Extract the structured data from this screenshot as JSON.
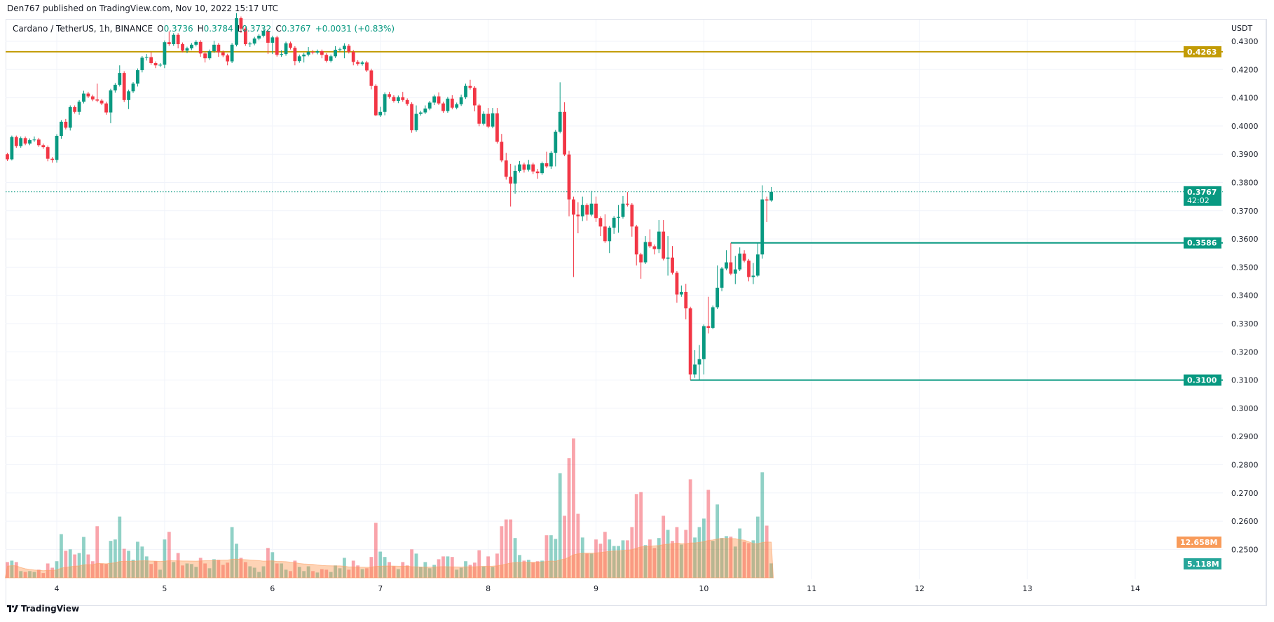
{
  "published": "Den767 published on TradingView.com, Nov 10, 2022 15:17 UTC",
  "legend": {
    "symbol": "Cardano / TetherUS, 1h, BINANCE",
    "o_label": "O",
    "o": "0.3736",
    "h_label": "H",
    "h": "0.3784",
    "l_label": "L",
    "l": "0.3732",
    "c_label": "C",
    "c": "0.3767",
    "change": "+0.0031 (+0.83%)"
  },
  "footer": {
    "logo_text": "TradingView",
    "logo_icon": "tradingview-logo-icon"
  },
  "colors": {
    "up": "#089981",
    "down": "#f23645",
    "level_gold": "#c29b05",
    "level_green": "#089981",
    "volume_ma": "#f89b5a",
    "volume_label": "#26a69a"
  },
  "chart_data": {
    "type": "candlestick",
    "interval": "1h",
    "first_candle": "Nov 3 13:00",
    "last_candle": "Nov 10 15:00",
    "y_unit": "USDT",
    "ylim": [
      0.245,
      0.438
    ],
    "grid": true,
    "price_ticks": [
      "0.4300",
      "0.4200",
      "0.4100",
      "0.4000",
      "0.3900",
      "0.3800",
      "0.3700",
      "0.3600",
      "0.3500",
      "0.3400",
      "0.3300",
      "0.3200",
      "0.3100",
      "0.3000",
      "0.2900",
      "0.2800",
      "0.2700",
      "0.2600",
      "0.2500"
    ],
    "time_ticks": [
      "4",
      "5",
      "6",
      "7",
      "8",
      "9",
      "10",
      "11",
      "12",
      "13",
      "14"
    ],
    "candles_ohlc": [
      [
        0.39,
        0.3905,
        0.3876,
        0.3882
      ],
      [
        0.3882,
        0.3966,
        0.3878,
        0.3961
      ],
      [
        0.3961,
        0.3966,
        0.3923,
        0.3929
      ],
      [
        0.3929,
        0.3963,
        0.3923,
        0.3957
      ],
      [
        0.3957,
        0.3963,
        0.3932,
        0.3938
      ],
      [
        0.3938,
        0.3956,
        0.3932,
        0.395
      ],
      [
        0.395,
        0.3963,
        0.3944,
        0.3952
      ],
      [
        0.3952,
        0.3958,
        0.3926,
        0.3932
      ],
      [
        0.3932,
        0.3938,
        0.3919,
        0.3925
      ],
      [
        0.3925,
        0.3931,
        0.3875,
        0.3884
      ],
      [
        0.3884,
        0.389,
        0.387,
        0.388
      ],
      [
        0.388,
        0.3971,
        0.387,
        0.3965
      ],
      [
        0.3965,
        0.4021,
        0.3955,
        0.4015
      ],
      [
        0.4015,
        0.4025,
        0.3988,
        0.3994
      ],
      [
        0.3994,
        0.4073,
        0.3984,
        0.4067
      ],
      [
        0.4067,
        0.4073,
        0.4044,
        0.405
      ],
      [
        0.405,
        0.4092,
        0.404,
        0.4086
      ],
      [
        0.4086,
        0.4125,
        0.408,
        0.4115
      ],
      [
        0.4115,
        0.4121,
        0.4099,
        0.4105
      ],
      [
        0.4105,
        0.4111,
        0.4088,
        0.4094
      ],
      [
        0.4094,
        0.415,
        0.4084,
        0.409
      ],
      [
        0.409,
        0.4096,
        0.4074,
        0.408
      ],
      [
        0.408,
        0.4086,
        0.404,
        0.4048
      ],
      [
        0.4048,
        0.4132,
        0.401,
        0.4126
      ],
      [
        0.4126,
        0.4152,
        0.4118,
        0.4146
      ],
      [
        0.4146,
        0.4215,
        0.414,
        0.4188
      ],
      [
        0.4188,
        0.4194,
        0.4085,
        0.4092
      ],
      [
        0.4092,
        0.4129,
        0.406,
        0.4123
      ],
      [
        0.4123,
        0.4156,
        0.4117,
        0.415
      ],
      [
        0.415,
        0.4204,
        0.414,
        0.4198
      ],
      [
        0.4198,
        0.4248,
        0.419,
        0.4242
      ],
      [
        0.4242,
        0.4255,
        0.4232,
        0.4244
      ],
      [
        0.4244,
        0.4262,
        0.4217,
        0.4223
      ],
      [
        0.4223,
        0.4229,
        0.4205,
        0.4215
      ],
      [
        0.4215,
        0.4223,
        0.4209,
        0.4217
      ],
      [
        0.4217,
        0.4303,
        0.4205,
        0.4297
      ],
      [
        0.4297,
        0.4335,
        0.4284,
        0.429
      ],
      [
        0.429,
        0.4329,
        0.4284,
        0.4323
      ],
      [
        0.4323,
        0.4329,
        0.4275,
        0.429
      ],
      [
        0.429,
        0.4296,
        0.4261,
        0.4267
      ],
      [
        0.4267,
        0.4281,
        0.4258,
        0.4275
      ],
      [
        0.4275,
        0.4294,
        0.4269,
        0.4288
      ],
      [
        0.4288,
        0.4304,
        0.4282,
        0.4298
      ],
      [
        0.4298,
        0.4304,
        0.4245,
        0.4257
      ],
      [
        0.4257,
        0.4263,
        0.4225,
        0.424
      ],
      [
        0.424,
        0.4271,
        0.4234,
        0.4265
      ],
      [
        0.4265,
        0.4302,
        0.4259,
        0.4288
      ],
      [
        0.4288,
        0.4294,
        0.4245,
        0.4261
      ],
      [
        0.4261,
        0.4267,
        0.4244,
        0.425
      ],
      [
        0.425,
        0.4256,
        0.4215,
        0.4229
      ],
      [
        0.4229,
        0.4294,
        0.4223,
        0.4288
      ],
      [
        0.4288,
        0.44,
        0.4282,
        0.4382
      ],
      [
        0.4382,
        0.4388,
        0.433,
        0.4345
      ],
      [
        0.4345,
        0.4351,
        0.4284,
        0.429
      ],
      [
        0.429,
        0.4298,
        0.428,
        0.4292
      ],
      [
        0.4292,
        0.4316,
        0.4286,
        0.431
      ],
      [
        0.431,
        0.4326,
        0.4304,
        0.432
      ],
      [
        0.432,
        0.4345,
        0.4314,
        0.4337
      ],
      [
        0.4337,
        0.4343,
        0.4255,
        0.4295
      ],
      [
        0.4295,
        0.432,
        0.4255,
        0.4314
      ],
      [
        0.4314,
        0.432,
        0.4246,
        0.4252
      ],
      [
        0.4252,
        0.4268,
        0.4245,
        0.4255
      ],
      [
        0.4255,
        0.4299,
        0.4249,
        0.4293
      ],
      [
        0.4293,
        0.4299,
        0.4271,
        0.4277
      ],
      [
        0.4277,
        0.4283,
        0.4215,
        0.423
      ],
      [
        0.423,
        0.4253,
        0.4224,
        0.4247
      ],
      [
        0.4247,
        0.4259,
        0.4225,
        0.4253
      ],
      [
        0.4253,
        0.428,
        0.4247,
        0.4263
      ],
      [
        0.4263,
        0.4269,
        0.4254,
        0.426
      ],
      [
        0.426,
        0.4271,
        0.4254,
        0.4265
      ],
      [
        0.4265,
        0.4271,
        0.424,
        0.4252
      ],
      [
        0.4252,
        0.4258,
        0.4225,
        0.4231
      ],
      [
        0.4231,
        0.4253,
        0.4225,
        0.4247
      ],
      [
        0.4247,
        0.4283,
        0.4241,
        0.427
      ],
      [
        0.427,
        0.4278,
        0.4264,
        0.4272
      ],
      [
        0.4272,
        0.4293,
        0.424,
        0.4284
      ],
      [
        0.4284,
        0.429,
        0.4257,
        0.4263
      ],
      [
        0.4263,
        0.4269,
        0.4215,
        0.4227
      ],
      [
        0.4227,
        0.4233,
        0.4214,
        0.422
      ],
      [
        0.422,
        0.4231,
        0.4214,
        0.4225
      ],
      [
        0.4225,
        0.4231,
        0.4191,
        0.4197
      ],
      [
        0.4197,
        0.4203,
        0.413,
        0.4142
      ],
      [
        0.4142,
        0.4148,
        0.4035,
        0.4038
      ],
      [
        0.4038,
        0.4068,
        0.4032,
        0.405
      ],
      [
        0.405,
        0.4119,
        0.4038,
        0.4113
      ],
      [
        0.4113,
        0.4121,
        0.4097,
        0.4103
      ],
      [
        0.4103,
        0.4109,
        0.4083,
        0.4089
      ],
      [
        0.4089,
        0.4108,
        0.4081,
        0.4102
      ],
      [
        0.4102,
        0.4121,
        0.4086,
        0.4092
      ],
      [
        0.4092,
        0.4098,
        0.4072,
        0.4078
      ],
      [
        0.4078,
        0.4084,
        0.3976,
        0.3985
      ],
      [
        0.3985,
        0.4073,
        0.398,
        0.4043
      ],
      [
        0.4043,
        0.4054,
        0.4037,
        0.4048
      ],
      [
        0.4048,
        0.4073,
        0.4042,
        0.4062
      ],
      [
        0.4062,
        0.4089,
        0.4056,
        0.4083
      ],
      [
        0.4083,
        0.4111,
        0.4074,
        0.4105
      ],
      [
        0.4105,
        0.4119,
        0.4074,
        0.408
      ],
      [
        0.408,
        0.4086,
        0.4047,
        0.4053
      ],
      [
        0.4053,
        0.4103,
        0.4047,
        0.4097
      ],
      [
        0.4097,
        0.4109,
        0.4059,
        0.4065
      ],
      [
        0.4065,
        0.4083,
        0.4059,
        0.4077
      ],
      [
        0.4077,
        0.4111,
        0.4071,
        0.4102
      ],
      [
        0.4102,
        0.415,
        0.4096,
        0.4142
      ],
      [
        0.4142,
        0.4164,
        0.4129,
        0.4135
      ],
      [
        0.4135,
        0.4141,
        0.4052,
        0.4073
      ],
      [
        0.4073,
        0.4079,
        0.3999,
        0.4008
      ],
      [
        0.4008,
        0.4052,
        0.4002,
        0.4043
      ],
      [
        0.4043,
        0.4064,
        0.3992,
        0.3998
      ],
      [
        0.3998,
        0.4064,
        0.3992,
        0.4045
      ],
      [
        0.4045,
        0.4064,
        0.3938,
        0.3944
      ],
      [
        0.3944,
        0.3972,
        0.3872,
        0.3878
      ],
      [
        0.3878,
        0.3905,
        0.381,
        0.382
      ],
      [
        0.382,
        0.3866,
        0.3715,
        0.3796
      ],
      [
        0.3796,
        0.386,
        0.376,
        0.3841
      ],
      [
        0.3841,
        0.3876,
        0.3835,
        0.3864
      ],
      [
        0.3864,
        0.387,
        0.3835,
        0.3845
      ],
      [
        0.3845,
        0.388,
        0.3839,
        0.3864
      ],
      [
        0.3864,
        0.387,
        0.383,
        0.3839
      ],
      [
        0.3839,
        0.3848,
        0.3813,
        0.3833
      ],
      [
        0.3833,
        0.3874,
        0.3827,
        0.3868
      ],
      [
        0.3868,
        0.3909,
        0.3851,
        0.3857
      ],
      [
        0.3857,
        0.3911,
        0.3848,
        0.3905
      ],
      [
        0.3905,
        0.3986,
        0.3857,
        0.398
      ],
      [
        0.398,
        0.4155,
        0.3974,
        0.405
      ],
      [
        0.405,
        0.4084,
        0.3893,
        0.3899
      ],
      [
        0.3899,
        0.3912,
        0.368,
        0.374
      ],
      [
        0.374,
        0.375,
        0.3465,
        0.3686
      ],
      [
        0.3686,
        0.373,
        0.362,
        0.368
      ],
      [
        0.368,
        0.375,
        0.3663,
        0.372
      ],
      [
        0.372,
        0.3726,
        0.3665,
        0.3686
      ],
      [
        0.3686,
        0.377,
        0.368,
        0.3725
      ],
      [
        0.3725,
        0.375,
        0.366,
        0.3674
      ],
      [
        0.3674,
        0.368,
        0.361,
        0.3644
      ],
      [
        0.3644,
        0.3687,
        0.3586,
        0.3592
      ],
      [
        0.3592,
        0.3646,
        0.355,
        0.364
      ],
      [
        0.364,
        0.3681,
        0.3618,
        0.3675
      ],
      [
        0.3675,
        0.372,
        0.3622,
        0.3678
      ],
      [
        0.3678,
        0.3752,
        0.3672,
        0.3725
      ],
      [
        0.3725,
        0.3766,
        0.3715,
        0.3721
      ],
      [
        0.3721,
        0.3727,
        0.3608,
        0.3644
      ],
      [
        0.3644,
        0.365,
        0.3506,
        0.3545
      ],
      [
        0.3545,
        0.3551,
        0.3459,
        0.3517
      ],
      [
        0.3517,
        0.361,
        0.3511,
        0.3589
      ],
      [
        0.3589,
        0.3634,
        0.3568,
        0.3574
      ],
      [
        0.3574,
        0.358,
        0.3545,
        0.3564
      ],
      [
        0.3564,
        0.3667,
        0.355,
        0.3626
      ],
      [
        0.3626,
        0.3667,
        0.3524,
        0.353
      ],
      [
        0.353,
        0.361,
        0.347,
        0.3534
      ],
      [
        0.3534,
        0.3575,
        0.3474,
        0.348
      ],
      [
        0.348,
        0.3486,
        0.3374,
        0.3403
      ],
      [
        0.3403,
        0.3435,
        0.3395,
        0.3412
      ],
      [
        0.3412,
        0.3441,
        0.3315,
        0.3354
      ],
      [
        0.3354,
        0.336,
        0.31,
        0.312
      ],
      [
        0.312,
        0.3206,
        0.3108,
        0.3155
      ],
      [
        0.3155,
        0.3224,
        0.31,
        0.3174
      ],
      [
        0.3174,
        0.3297,
        0.312,
        0.3291
      ],
      [
        0.3291,
        0.3395,
        0.3265,
        0.3285
      ],
      [
        0.3285,
        0.3364,
        0.328,
        0.3358
      ],
      [
        0.3358,
        0.3506,
        0.3352,
        0.3427
      ],
      [
        0.3427,
        0.3501,
        0.3415,
        0.3495
      ],
      [
        0.3495,
        0.356,
        0.3489,
        0.3517
      ],
      [
        0.3517,
        0.3586,
        0.3471,
        0.3477
      ],
      [
        0.3477,
        0.354,
        0.344,
        0.3492
      ],
      [
        0.3492,
        0.357,
        0.3486,
        0.3548
      ],
      [
        0.3548,
        0.356,
        0.3517,
        0.3523
      ],
      [
        0.3523,
        0.3529,
        0.345,
        0.3465
      ],
      [
        0.3465,
        0.3515,
        0.344,
        0.347
      ],
      [
        0.347,
        0.3586,
        0.3465,
        0.3545
      ],
      [
        0.3545,
        0.379,
        0.353,
        0.374
      ],
      [
        0.374,
        0.375,
        0.366,
        0.3736
      ],
      [
        0.3736,
        0.3784,
        0.3732,
        0.3767
      ]
    ],
    "volume_millions": [
      5.6,
      6.1,
      5.6,
      2.4,
      2.1,
      2.4,
      2.1,
      2.9,
      1.7,
      5.1,
      3.6,
      5.9,
      15.5,
      9.6,
      10.1,
      8.3,
      8.8,
      14.5,
      8.3,
      5.9,
      18.3,
      5.1,
      4.9,
      13.1,
      13.6,
      21.7,
      10.3,
      9.6,
      6.4,
      12.8,
      11.1,
      7.6,
      4.9,
      5.9,
      2.9,
      13.6,
      16.3,
      5.6,
      8.8,
      4.4,
      5.1,
      4.9,
      3.9,
      7.1,
      5.1,
      3.4,
      6.6,
      6.4,
      4.6,
      5.4,
      18.0,
      12.1,
      7.1,
      5.6,
      4.1,
      3.6,
      2.1,
      4.1,
      10.6,
      9.1,
      5.1,
      5.1,
      2.9,
      2.4,
      6.1,
      3.9,
      2.4,
      4.1,
      2.4,
      1.9,
      3.1,
      2.9,
      2.1,
      4.4,
      3.4,
      7.1,
      2.9,
      6.1,
      4.4,
      3.1,
      3.4,
      7.4,
      19.5,
      9.3,
      7.4,
      5.6,
      4.1,
      3.1,
      5.6,
      4.4,
      10.1,
      8.6,
      3.9,
      5.6,
      3.4,
      4.6,
      6.6,
      7.6,
      7.6,
      7.4,
      2.9,
      3.6,
      5.9,
      4.6,
      5.4,
      9.8,
      4.1,
      7.6,
      3.9,
      8.6,
      18.3,
      20.7,
      20.7,
      14.1,
      8.1,
      6.1,
      6.4,
      5.4,
      5.9,
      6.1,
      15.1,
      15.1,
      13.8,
      37.1,
      22.0,
      42.4,
      49.4,
      22.7,
      14.3,
      8.6,
      8.6,
      13.6,
      12.1,
      16.3,
      13.6,
      11.3,
      11.3,
      13.3,
      13.3,
      18.0,
      29.7,
      30.4,
      11.6,
      13.6,
      10.6,
      14.1,
      22.0,
      17.0,
      13.1,
      18.0,
      11.8,
      17.0,
      34.9,
      14.3,
      18.0,
      21.0,
      31.2,
      13.1,
      26.0,
      14.1,
      14.8,
      14.6,
      11.1,
      17.5,
      12.8,
      12.3,
      13.3,
      21.7,
      37.4,
      18.5,
      5.118
    ],
    "levels": [
      {
        "price": 0.4263,
        "label": "0.4263",
        "color": "#c29b05"
      },
      {
        "price": 0.3586,
        "label": "0.3586",
        "color": "#089981"
      },
      {
        "price": 0.31,
        "label": "0.3100",
        "color": "#089981"
      }
    ],
    "last_price": {
      "price": 0.3767,
      "label": "0.3767",
      "countdown": "42:02"
    },
    "volume_ma_label": "12.658M",
    "volume_last_label": "5.118M"
  }
}
